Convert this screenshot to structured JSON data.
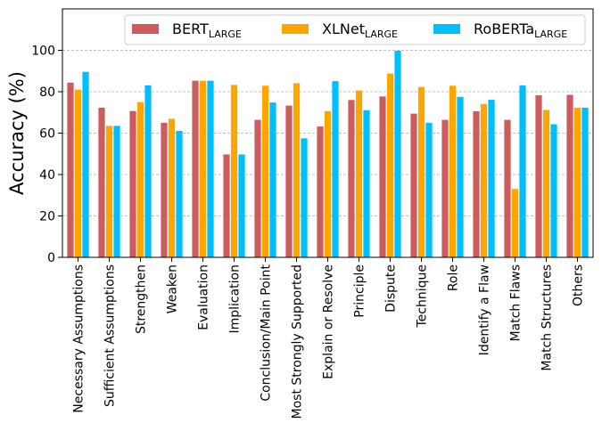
{
  "chart_data": {
    "type": "bar",
    "title": "",
    "xlabel": "",
    "ylabel": "Accuracy (%)",
    "ylim": [
      0,
      120
    ],
    "yticks": [
      0,
      20,
      40,
      60,
      80,
      100
    ],
    "grid": "horizontal dashed",
    "legend_position": "top-right",
    "categories": [
      "Necessary Assumptions",
      "Sufficient Assumptions",
      "Strengthen",
      "Weaken",
      "Evaluation",
      "Implication",
      "Conclusion/Main Point",
      "Most Strongly Supported",
      "Explain or Resolve",
      "Principle",
      "Dispute",
      "Technique",
      "Role",
      "Identify a Flaw",
      "Match Flaws",
      "Match Structures",
      "Others"
    ],
    "series": [
      {
        "name": "BERT",
        "subscript": "LARGE",
        "color": "#cd5c5c",
        "values": [
          84.4,
          72.3,
          70.7,
          65.0,
          85.3,
          49.7,
          66.4,
          73.3,
          63.2,
          76.0,
          77.7,
          69.4,
          66.4,
          70.6,
          66.4,
          78.3,
          78.5
        ]
      },
      {
        "name": "XLNet",
        "subscript": "LARGE",
        "color": "#ffa500",
        "values": [
          81.0,
          63.5,
          75.0,
          66.9,
          85.3,
          83.3,
          82.9,
          84.1,
          70.6,
          80.6,
          88.8,
          82.3,
          82.9,
          74.1,
          33.0,
          71.2,
          72.3
        ]
      },
      {
        "name": "RoBERTa",
        "subscript": "LARGE",
        "color": "#00bfff",
        "values": [
          89.6,
          63.5,
          83.1,
          61.1,
          85.3,
          49.7,
          74.8,
          57.5,
          85.1,
          71.1,
          99.8,
          65.0,
          77.5,
          76.1,
          83.1,
          64.3,
          72.3
        ]
      }
    ]
  }
}
